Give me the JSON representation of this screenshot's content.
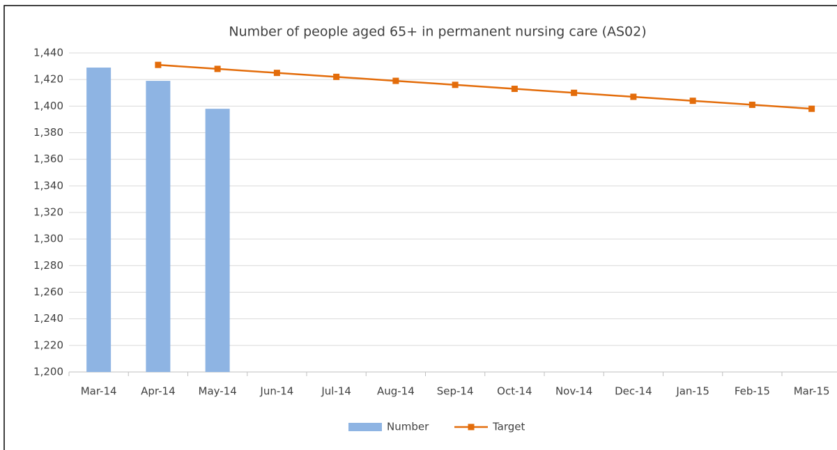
{
  "chart_data": {
    "type": "bar",
    "title": "Number of people aged 65+ in permanent nursing care (AS02)",
    "categories": [
      "Mar-14",
      "Apr-14",
      "May-14",
      "Jun-14",
      "Jul-14",
      "Aug-14",
      "Sep-14",
      "Oct-14",
      "Nov-14",
      "Dec-14",
      "Jan-15",
      "Feb-15",
      "Mar-15"
    ],
    "series": [
      {
        "name": "Number",
        "type": "bar",
        "color": "#8eb4e3",
        "values": [
          1429,
          1419,
          1398,
          null,
          null,
          null,
          null,
          null,
          null,
          null,
          null,
          null,
          null
        ]
      },
      {
        "name": "Target",
        "type": "line",
        "color": "#e36c0a",
        "values": [
          null,
          1431,
          1428,
          1425,
          1422,
          1419,
          1416,
          1413,
          1410,
          1407,
          1404,
          1401,
          1398
        ]
      }
    ],
    "ylim": [
      1200,
      1440
    ],
    "yticks": [
      {
        "value": 1200,
        "label": "1,200"
      },
      {
        "value": 1220,
        "label": "1,220"
      },
      {
        "value": 1240,
        "label": "1,240"
      },
      {
        "value": 1260,
        "label": "1,260"
      },
      {
        "value": 1280,
        "label": "1,280"
      },
      {
        "value": 1300,
        "label": "1,300"
      },
      {
        "value": 1320,
        "label": "1,320"
      },
      {
        "value": 1340,
        "label": "1,340"
      },
      {
        "value": 1360,
        "label": "1,360"
      },
      {
        "value": 1380,
        "label": "1,380"
      },
      {
        "value": 1400,
        "label": "1,400"
      },
      {
        "value": 1420,
        "label": "1,420"
      },
      {
        "value": 1440,
        "label": "1,440"
      }
    ],
    "grid": true,
    "legend": "bottom"
  }
}
